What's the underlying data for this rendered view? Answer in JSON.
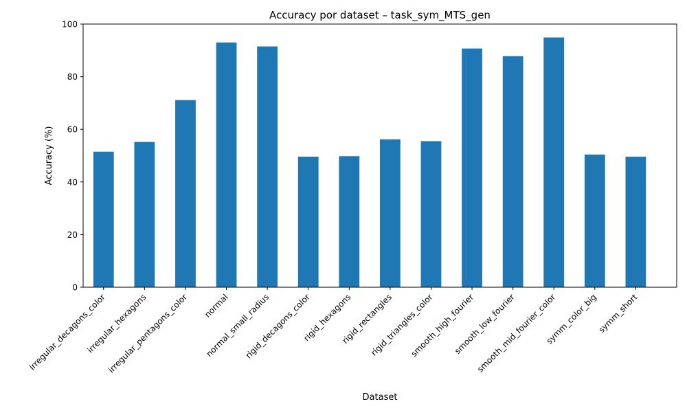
{
  "chart_data": {
    "type": "bar",
    "title": "Accuracy por dataset – task_sym_MTS_gen",
    "xlabel": "Dataset",
    "ylabel": "Accuracy (%)",
    "ylim": [
      0,
      100
    ],
    "yticks": [
      0,
      20,
      40,
      60,
      80,
      100
    ],
    "grid": false,
    "legend": "none",
    "bar_color": "#1f77b4",
    "categories": [
      "irregular_decagons_color",
      "irregular_hexagons",
      "irregular_pentagons_color",
      "normal",
      "normal_small_radius",
      "rigid_decagons_color",
      "rigid_hexagons",
      "rigid_rectangles",
      "rigid_triangles_color",
      "smooth_high_fourier",
      "smooth_low_fourier",
      "smooth_mid_fourier_color",
      "symm_color_big",
      "symm_short"
    ],
    "values": [
      51.5,
      55.2,
      71.1,
      93.0,
      91.5,
      49.6,
      49.8,
      56.2,
      55.5,
      90.7,
      87.8,
      94.9,
      50.4,
      49.6
    ]
  }
}
